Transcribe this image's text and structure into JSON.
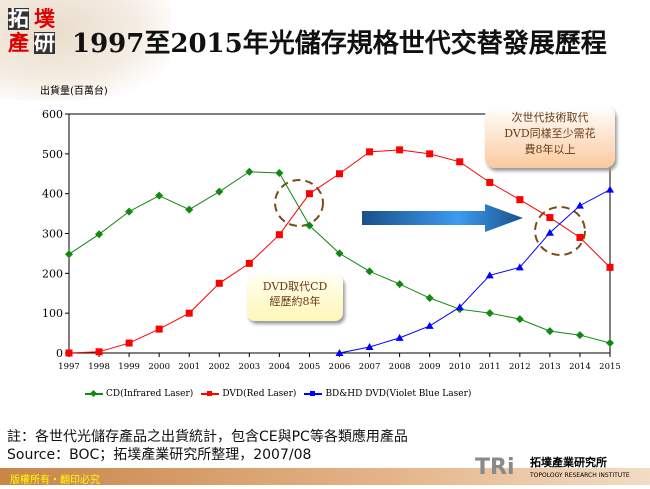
{
  "header": {
    "title": "1997至2015年光儲存規格世代交替發展歷程",
    "logo_text": [
      "拓",
      "墣",
      "產",
      "研"
    ]
  },
  "chart_data": {
    "type": "line",
    "title": "",
    "ylabel": "出貨量(百萬台)",
    "xlabel": "",
    "ylim": [
      0,
      600
    ],
    "yticks": [
      0,
      100,
      200,
      300,
      400,
      500,
      600
    ],
    "categories": [
      "1997",
      "1998",
      "1999",
      "2000",
      "2001",
      "2002",
      "2003",
      "2004",
      "2005",
      "2006",
      "2007",
      "2008",
      "2009",
      "2010",
      "2011",
      "2012",
      "2013",
      "2014",
      "2015"
    ],
    "grid": false,
    "legend": "bottom",
    "series": [
      {
        "name": "CD(Infrared Laser)",
        "color": "#118811",
        "marker": "diamond",
        "values": [
          248,
          298,
          355,
          395,
          360,
          405,
          455,
          452,
          320,
          250,
          205,
          173,
          138,
          110,
          100,
          85,
          55,
          45,
          25
        ]
      },
      {
        "name": "DVD(Red Laser)",
        "color": "#ff0000",
        "marker": "square",
        "values": [
          0,
          3,
          25,
          60,
          100,
          175,
          225,
          297,
          400,
          450,
          505,
          510,
          500,
          480,
          428,
          385,
          340,
          290,
          215
        ]
      },
      {
        "name": "BD&HD DVD(Violet Blue Laser)",
        "color": "#0000ff",
        "marker": "triangle",
        "values": [
          null,
          null,
          null,
          null,
          null,
          null,
          null,
          null,
          null,
          0,
          15,
          38,
          68,
          115,
          195,
          215,
          302,
          370,
          410
        ]
      }
    ],
    "annotations": [
      "DVD取代CD",
      "經歷約8年",
      "次世代技術取代",
      "DVD同樣至少需花",
      "費8年以上"
    ]
  },
  "notes": {
    "line1": "註：各世代光儲存產品之出貨統計，包含CE與PC等各類應用產品",
    "line2": "Source：BOC；拓墣產業研究所整理，2007/08"
  },
  "footer": {
    "copyright": "版權所有・翻印必究",
    "brand_short": "TRi",
    "brand_zh": "拓墣產業研究所",
    "brand_en": "TOPOLOGY RESEARCH INSTITUTE"
  }
}
